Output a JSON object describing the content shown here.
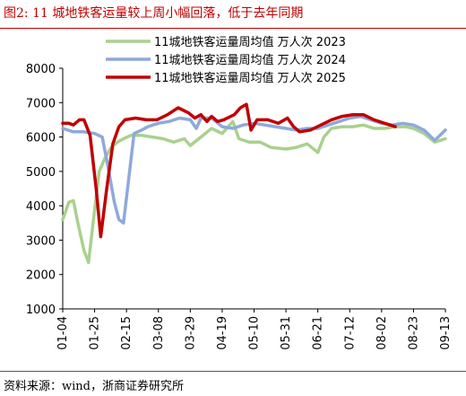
{
  "figure": {
    "title": "图2:   11 城地铁客运量较上周小幅回落，低于去年同期",
    "source": "资料来源：wind，浙商证券研究所"
  },
  "chart_data": {
    "type": "line",
    "title": "",
    "xlabel": "",
    "ylabel": "",
    "ylim": [
      1000,
      8000
    ],
    "yticks": [
      1000,
      2000,
      3000,
      4000,
      5000,
      6000,
      7000,
      8000
    ],
    "xlim": [
      "01-04",
      "09-13"
    ],
    "xticks": [
      "01-04",
      "01-25",
      "02-15",
      "03-08",
      "03-29",
      "04-19",
      "05-10",
      "05-31",
      "06-21",
      "07-12",
      "08-02",
      "08-23",
      "09-13"
    ],
    "grid": false,
    "legend": "top-right",
    "series": [
      {
        "name": "11城地铁客运量周均值  万人次  2023",
        "color": "#a9d18e",
        "points": [
          [
            "01-04",
            3600
          ],
          [
            "01-08",
            4100
          ],
          [
            "01-11",
            4150
          ],
          [
            "01-14",
            3500
          ],
          [
            "01-18",
            2700
          ],
          [
            "01-21",
            2350
          ],
          [
            "01-24",
            3500
          ],
          [
            "01-28",
            5000
          ],
          [
            "02-01",
            5400
          ],
          [
            "02-05",
            5700
          ],
          [
            "02-09",
            5850
          ],
          [
            "02-13",
            5950
          ],
          [
            "02-18",
            6050
          ],
          [
            "02-25",
            6050
          ],
          [
            "03-04",
            6000
          ],
          [
            "03-11",
            5950
          ],
          [
            "03-18",
            5850
          ],
          [
            "03-25",
            5950
          ],
          [
            "03-29",
            5750
          ],
          [
            "04-05",
            6000
          ],
          [
            "04-12",
            6250
          ],
          [
            "04-19",
            6100
          ],
          [
            "04-26",
            6450
          ],
          [
            "04-30",
            5950
          ],
          [
            "05-07",
            5850
          ],
          [
            "05-14",
            5850
          ],
          [
            "05-21",
            5700
          ],
          [
            "05-31",
            5650
          ],
          [
            "06-07",
            5700
          ],
          [
            "06-14",
            5800
          ],
          [
            "06-21",
            5550
          ],
          [
            "06-25",
            6000
          ],
          [
            "06-30",
            6250
          ],
          [
            "07-07",
            6300
          ],
          [
            "07-14",
            6300
          ],
          [
            "07-21",
            6350
          ],
          [
            "07-28",
            6250
          ],
          [
            "08-04",
            6250
          ],
          [
            "08-11",
            6300
          ],
          [
            "08-18",
            6300
          ],
          [
            "08-23",
            6250
          ],
          [
            "08-30",
            6100
          ],
          [
            "09-06",
            5850
          ],
          [
            "09-13",
            5950
          ]
        ]
      },
      {
        "name": "11城地铁客运量周均值  万人次  2024",
        "color": "#8ea9db",
        "points": [
          [
            "01-04",
            6250
          ],
          [
            "01-11",
            6150
          ],
          [
            "01-18",
            6150
          ],
          [
            "01-25",
            6100
          ],
          [
            "01-30",
            6000
          ],
          [
            "02-03",
            5100
          ],
          [
            "02-07",
            4100
          ],
          [
            "02-10",
            3600
          ],
          [
            "02-13",
            3500
          ],
          [
            "02-17",
            5000
          ],
          [
            "02-20",
            6100
          ],
          [
            "02-25",
            6200
          ],
          [
            "03-01",
            6300
          ],
          [
            "03-08",
            6400
          ],
          [
            "03-15",
            6450
          ],
          [
            "03-22",
            6550
          ],
          [
            "03-29",
            6500
          ],
          [
            "04-02",
            6250
          ],
          [
            "04-05",
            6550
          ],
          [
            "04-12",
            6550
          ],
          [
            "04-19",
            6300
          ],
          [
            "04-26",
            6250
          ],
          [
            "05-03",
            6350
          ],
          [
            "05-10",
            6400
          ],
          [
            "05-17",
            6350
          ],
          [
            "05-24",
            6300
          ],
          [
            "05-31",
            6250
          ],
          [
            "06-07",
            6200
          ],
          [
            "06-14",
            6250
          ],
          [
            "06-21",
            6250
          ],
          [
            "06-28",
            6350
          ],
          [
            "07-05",
            6450
          ],
          [
            "07-12",
            6550
          ],
          [
            "07-19",
            6600
          ],
          [
            "07-26",
            6500
          ],
          [
            "08-02",
            6400
          ],
          [
            "08-09",
            6350
          ],
          [
            "08-16",
            6400
          ],
          [
            "08-23",
            6350
          ],
          [
            "08-30",
            6200
          ],
          [
            "09-06",
            5900
          ],
          [
            "09-13",
            6200
          ]
        ]
      },
      {
        "name": "11城地铁客运量周均值  万人次  2025",
        "color": "#c00000",
        "points": [
          [
            "01-04",
            6400
          ],
          [
            "01-08",
            6400
          ],
          [
            "01-11",
            6350
          ],
          [
            "01-15",
            6500
          ],
          [
            "01-18",
            6500
          ],
          [
            "01-22",
            6050
          ],
          [
            "01-26",
            4500
          ],
          [
            "01-29",
            3100
          ],
          [
            "02-02",
            4500
          ],
          [
            "02-06",
            5800
          ],
          [
            "02-10",
            6300
          ],
          [
            "02-14",
            6500
          ],
          [
            "02-21",
            6550
          ],
          [
            "02-28",
            6500
          ],
          [
            "03-07",
            6500
          ],
          [
            "03-14",
            6650
          ],
          [
            "03-21",
            6850
          ],
          [
            "03-28",
            6700
          ],
          [
            "04-01",
            6550
          ],
          [
            "04-05",
            6650
          ],
          [
            "04-09",
            6450
          ],
          [
            "04-12",
            6600
          ],
          [
            "04-16",
            6450
          ],
          [
            "04-20",
            6500
          ],
          [
            "04-27",
            6650
          ],
          [
            "05-01",
            6850
          ],
          [
            "05-05",
            6950
          ],
          [
            "05-08",
            6200
          ],
          [
            "05-12",
            6500
          ],
          [
            "05-19",
            6500
          ],
          [
            "05-26",
            6400
          ],
          [
            "06-01",
            6550
          ],
          [
            "06-05",
            6300
          ],
          [
            "06-09",
            6150
          ],
          [
            "06-16",
            6200
          ],
          [
            "06-23",
            6350
          ],
          [
            "06-30",
            6500
          ],
          [
            "07-07",
            6600
          ],
          [
            "07-14",
            6650
          ],
          [
            "07-21",
            6650
          ],
          [
            "07-28",
            6500
          ],
          [
            "08-04",
            6400
          ],
          [
            "08-11",
            6300
          ]
        ]
      }
    ]
  }
}
